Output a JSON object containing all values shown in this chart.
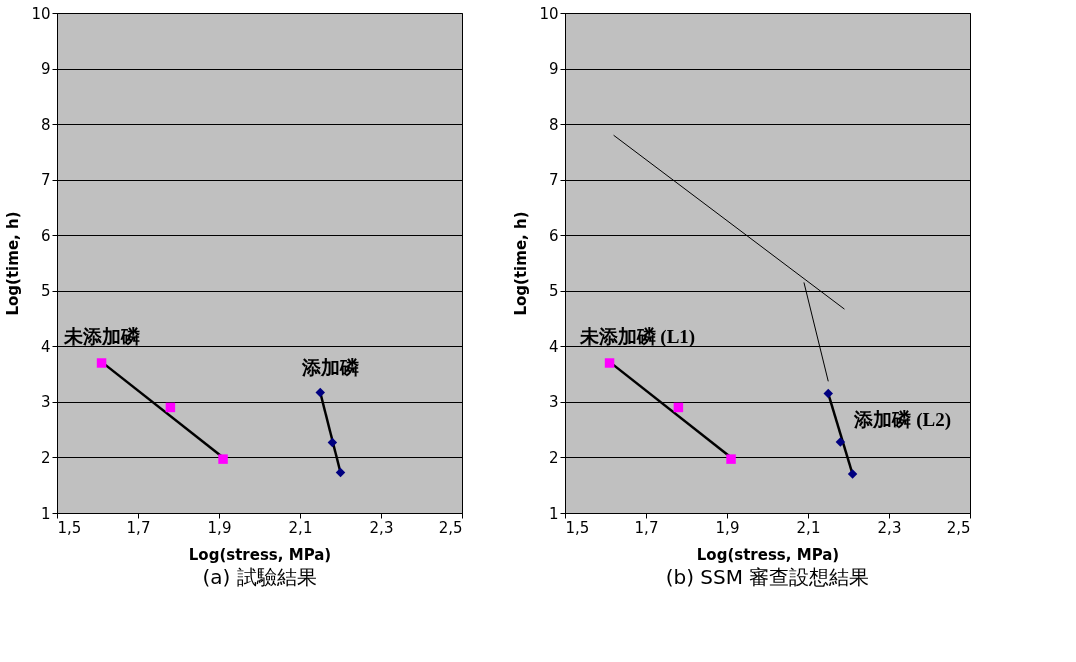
{
  "chart_data": [
    {
      "type": "scatter",
      "title": "(a) 試驗結果",
      "xlabel": "Log(stress, MPa)",
      "ylabel": "Log(time, h)",
      "xlim": [
        1.5,
        2.5
      ],
      "ylim": [
        1,
        10
      ],
      "xticks": [
        {
          "value": 1.5,
          "label": "1,5"
        },
        {
          "value": 1.7,
          "label": "1,7"
        },
        {
          "value": 1.9,
          "label": "1,9"
        },
        {
          "value": 2.1,
          "label": "2,1"
        },
        {
          "value": 2.3,
          "label": "2,3"
        },
        {
          "value": 2.5,
          "label": "2,5"
        }
      ],
      "yticks": [
        1,
        2,
        3,
        4,
        5,
        6,
        7,
        8,
        9,
        10
      ],
      "grid": "y",
      "series": [
        {
          "name": "未添加磷",
          "marker": "square",
          "color": "#ff00ff",
          "x": [
            1.61,
            1.78,
            1.91
          ],
          "values": [
            3.7,
            2.9,
            1.97
          ]
        },
        {
          "type": "line",
          "color": "#000000",
          "x": [
            1.61,
            1.91
          ],
          "values": [
            3.72,
            2.0
          ]
        },
        {
          "name": "添加磷",
          "marker": "diamond",
          "color": "#000080",
          "x": [
            2.15,
            2.18,
            2.2
          ],
          "values": [
            3.17,
            2.27,
            1.73
          ]
        },
        {
          "type": "line",
          "color": "#000000",
          "x": [
            2.15,
            2.2
          ],
          "values": [
            3.17,
            1.73
          ]
        }
      ]
    },
    {
      "type": "scatter",
      "title": "(b) SSM 審查設想結果",
      "xlabel": "Log(stress, MPa)",
      "ylabel": "Log(time, h)",
      "xlim": [
        1.5,
        2.5
      ],
      "ylim": [
        1,
        10
      ],
      "xticks": [
        {
          "value": 1.5,
          "label": "1,5"
        },
        {
          "value": 1.7,
          "label": "1,7"
        },
        {
          "value": 1.9,
          "label": "1,9"
        },
        {
          "value": 2.1,
          "label": "2,1"
        },
        {
          "value": 2.3,
          "label": "2,3"
        },
        {
          "value": 2.5,
          "label": "2,5"
        }
      ],
      "yticks": [
        1,
        2,
        3,
        4,
        5,
        6,
        7,
        8,
        9,
        10
      ],
      "grid": "y",
      "series": [
        {
          "name": "未添加磷 (L1)",
          "marker": "square",
          "color": "#ff00ff",
          "x": [
            1.61,
            1.78,
            1.91
          ],
          "values": [
            3.7,
            2.9,
            1.97
          ]
        },
        {
          "type": "line",
          "color": "#000000",
          "x": [
            1.61,
            1.91
          ],
          "values": [
            3.72,
            2.0
          ]
        },
        {
          "name": "添加磷 (L2)",
          "marker": "diamond",
          "color": "#000080",
          "x": [
            2.15,
            2.18,
            2.21
          ],
          "values": [
            3.15,
            2.28,
            1.7
          ]
        },
        {
          "type": "line",
          "color": "#000000",
          "x": [
            2.15,
            2.21
          ],
          "values": [
            3.15,
            1.7
          ]
        },
        {
          "type": "line",
          "color": "#000000",
          "x": [
            1.62,
            2.19
          ],
          "values": [
            7.8,
            4.67
          ]
        },
        {
          "type": "line",
          "color": "#000000",
          "x": [
            2.09,
            2.15
          ],
          "values": [
            5.15,
            3.37
          ]
        }
      ]
    }
  ]
}
